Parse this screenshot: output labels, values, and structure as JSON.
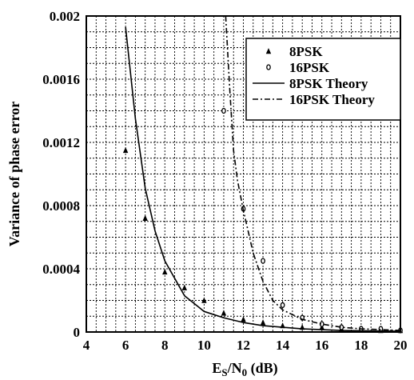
{
  "chart_data": {
    "type": "scatter",
    "title": "",
    "xlabel": {
      "main": "E",
      "sub1": "S",
      "mid": "/N",
      "sub2": "0",
      "tail": " (dB)"
    },
    "ylabel": "Variance of phase error",
    "xlim": [
      4,
      20
    ],
    "ylim": [
      0,
      0.002
    ],
    "x_ticks": [
      4,
      6,
      8,
      10,
      12,
      14,
      16,
      18,
      20
    ],
    "y_ticks": [
      0,
      0.0004,
      0.0008,
      0.0012,
      0.0016,
      0.002
    ],
    "x_tick_labels": [
      "4",
      "6",
      "8",
      "10",
      "12",
      "14",
      "16",
      "18",
      "20"
    ],
    "y_tick_labels": [
      "0",
      "0.0004",
      "0.0008",
      "0.0012",
      "0.0016",
      "0.002"
    ],
    "grid": true,
    "legend_position": "top-right",
    "series": [
      {
        "name": "8PSK",
        "kind": "marker",
        "marker": "triangle",
        "x": [
          6,
          7,
          8,
          9,
          10,
          11,
          12,
          13,
          14,
          15,
          16,
          17,
          18,
          19,
          20
        ],
        "y": [
          0.00115,
          0.00072,
          0.00038,
          0.00028,
          0.0002,
          0.00012,
          8e-05,
          6e-05,
          4e-05,
          3e-05,
          3e-05,
          2e-05,
          2e-05,
          1e-05,
          1e-05
        ]
      },
      {
        "name": "16PSK",
        "kind": "marker",
        "marker": "circle",
        "x": [
          11,
          12,
          13,
          14,
          15,
          16,
          17,
          18,
          19,
          20
        ],
        "y": [
          0.0014,
          0.00078,
          0.00045,
          0.00017,
          9e-05,
          5e-05,
          3e-05,
          2e-05,
          2e-05,
          1e-05
        ]
      },
      {
        "name": "8PSK Theory",
        "kind": "line",
        "dash": "solid",
        "x": [
          6,
          6.5,
          7,
          7.5,
          8,
          9,
          10,
          11,
          12,
          13,
          14,
          15,
          16,
          17,
          18,
          19,
          20
        ],
        "y": [
          0.00193,
          0.00135,
          0.00091,
          0.00064,
          0.00045,
          0.00023,
          0.00013,
          9e-05,
          6e-05,
          4e-05,
          3e-05,
          2e-05,
          1.5e-05,
          1e-05,
          8e-06,
          6e-06,
          5e-06
        ]
      },
      {
        "name": "16PSK Theory",
        "kind": "line",
        "dash": "dashdot",
        "x": [
          11.1,
          11.3,
          11.5,
          11.7,
          12,
          12.5,
          13,
          13.5,
          14,
          15,
          16,
          17,
          18,
          19,
          20
        ],
        "y": [
          0.002,
          0.00155,
          0.00115,
          0.00096,
          0.00077,
          0.0005,
          0.00032,
          0.0002,
          0.00014,
          8e-05,
          5e-05,
          3e-05,
          2e-05,
          1.5e-05,
          1e-05
        ]
      }
    ]
  }
}
